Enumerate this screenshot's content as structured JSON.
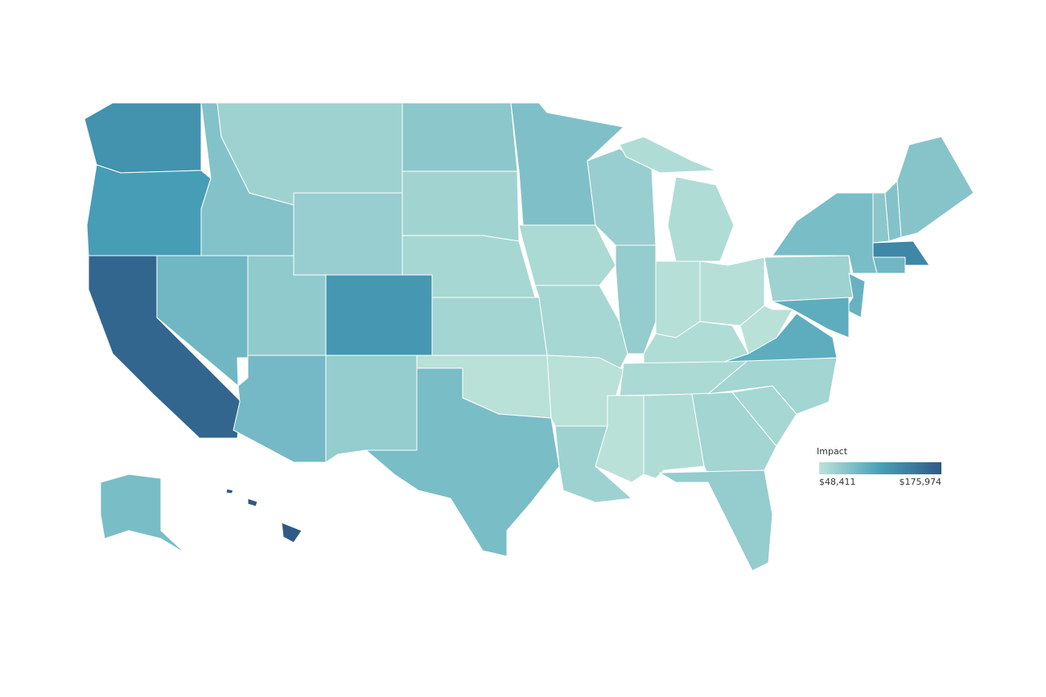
{
  "map": {
    "values": [
      125000,
      115000,
      165000,
      90000,
      80000,
      65000,
      68000,
      72000,
      120000,
      88000,
      70000,
      75000,
      63000,
      60000,
      62000,
      50000,
      85000,
      82000,
      58000,
      60000,
      50000,
      65000,
      68000,
      70000,
      55000,
      52000,
      52000,
      55000,
      58000,
      50000,
      55000,
      62000,
      70000,
      60000,
      62000,
      100000,
      50000,
      65000,
      85000,
      95000,
      100000,
      90000,
      135000,
      75000,
      80000,
      78000,
      85000,
      175974
    ],
    "colors": [
      "#bce3d9",
      "#48a0b8",
      "#2f5a85"
    ]
  },
  "legend": {
    "title": "Impact",
    "min": {
      "value": 48411,
      "label": "$48,411"
    },
    "max": {
      "value": 175974,
      "label": "$175,974"
    }
  }
}
